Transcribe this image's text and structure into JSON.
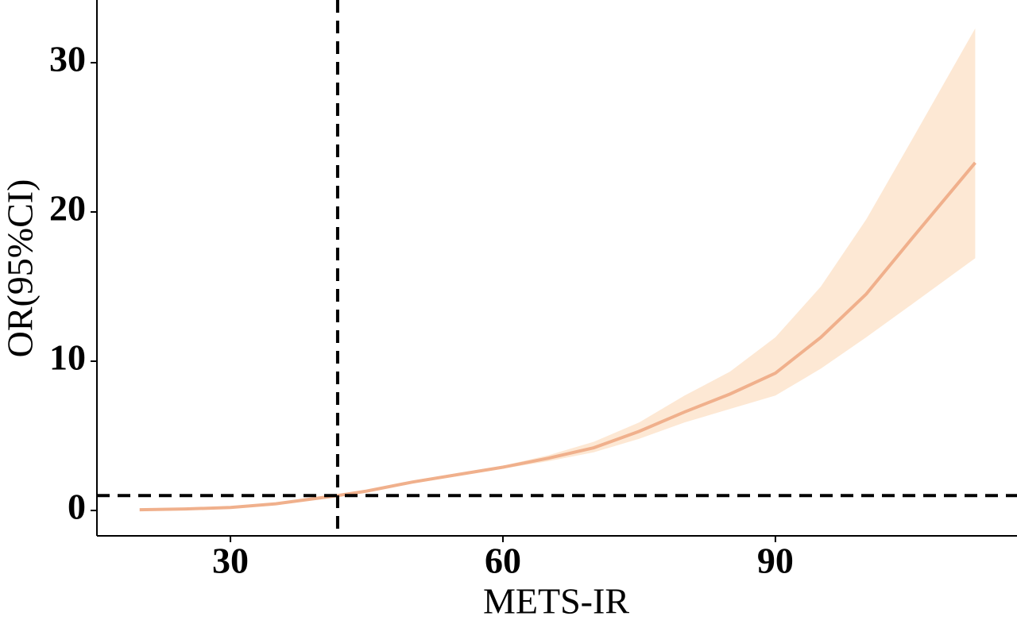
{
  "chart_data": {
    "type": "line",
    "x_label": "METS-IR",
    "y_label": "OR(95%CI)",
    "x": [
      20,
      25,
      30,
      35,
      41.8,
      45,
      50,
      55,
      60,
      65,
      70,
      75,
      80,
      85,
      90,
      95,
      100,
      105,
      112
    ],
    "values": [
      0.05,
      0.1,
      0.2,
      0.45,
      1,
      1.3,
      1.9,
      2.4,
      2.9,
      3.5,
      4.2,
      5.3,
      6.6,
      7.8,
      9.2,
      11.6,
      14.5,
      18.2,
      23.3
    ],
    "lower": [
      0.04,
      0.09,
      0.18,
      0.42,
      0.97,
      1.25,
      1.8,
      2.3,
      2.8,
      3.3,
      3.9,
      4.8,
      5.9,
      6.8,
      7.7,
      9.5,
      11.6,
      13.8,
      16.9
    ],
    "upper": [
      0.06,
      0.12,
      0.22,
      0.48,
      1.03,
      1.35,
      2.0,
      2.5,
      3.0,
      3.7,
      4.6,
      5.9,
      7.7,
      9.3,
      11.6,
      15.0,
      19.5,
      24.8,
      32.3
    ],
    "color": "#f0b08c",
    "band_color": "#fde8d4",
    "vline": 41.8,
    "hline": 1,
    "xlim": [
      15.3,
      116.6
    ],
    "ylim": [
      -1.7,
      34.2
    ],
    "xticks": [
      30,
      60,
      90
    ],
    "yticks": [
      0,
      10,
      20,
      30
    ],
    "grid": false
  }
}
